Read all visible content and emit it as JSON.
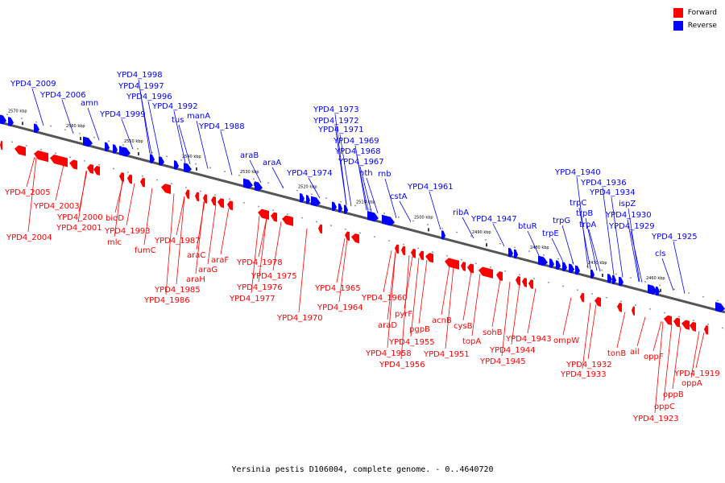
{
  "legend": [
    {
      "label": "Forward",
      "color": "#ff0000"
    },
    {
      "label": "Reverse",
      "color": "#0000ff"
    }
  ],
  "caption": "Yersinia pestis D106004, complete genome. - 0..4640720",
  "ticks": [
    "2570 kbp",
    "2560 kbp",
    "2550 kbp",
    "2540 kbp",
    "2530 kbp",
    "2520 kbp",
    "2510 kbp",
    "2500 kbp",
    "2490 kbp",
    "2480 kbp",
    "2470 kbp",
    "2460 kbp"
  ],
  "colors": {
    "forward": "#ff0000",
    "reverse": "#0000ff",
    "backbone": "#555555"
  },
  "reverse_labels": [
    "YPD4_2009",
    "YPD4_2006",
    "amn",
    "YPD4_1998",
    "YPD4_1997",
    "YPD4_1996",
    "YPD4_1999",
    "YPD4_1992",
    "tus",
    "manA",
    "YPD4_1988",
    "araB",
    "araA",
    "YPD4_1974",
    "YPD4_1973",
    "YPD4_1972",
    "YPD4_1971",
    "YPD4_1969",
    "YPD4_1968",
    "YPD4_1967",
    "nth",
    "rnb",
    "cstA",
    "YPD4_1961",
    "ribA",
    "YPD4_1947",
    "btuR",
    "YPD4_1940",
    "YPD4_1936",
    "YPD4_1934",
    "trpC",
    "trpG",
    "trpB",
    "trpA",
    "trpE",
    "ispZ",
    "YPD4_1930",
    "YPD4_1929",
    "YPD4_1925",
    "cls"
  ],
  "forward_labels": [
    "YPD4_2005",
    "YPD4_2003",
    "YPD4_2000",
    "YPD4_2001",
    "YPD4_2004",
    "bioD",
    "YPD4_1993",
    "mlc",
    "fumC",
    "YPD4_1987",
    "araC",
    "araF",
    "araG",
    "araH",
    "YPD4_1985",
    "YPD4_1986",
    "YPD4_1978",
    "YPD4_1975",
    "YPD4_1976",
    "YPD4_1977",
    "YPD4_1970",
    "YPD4_1965",
    "YPD4_1964",
    "YPD4_1960",
    "araD",
    "pyrF",
    "pgpB",
    "YPD4_1955",
    "YPD4_1958",
    "YPD4_1956",
    "acnB",
    "cysB",
    "YPD4_1951",
    "topA",
    "sohB",
    "YPD4_1943",
    "YPD4_1944",
    "YPD4_1945",
    "ompW",
    "YPD4_1932",
    "YPD4_1933",
    "tonB",
    "ail",
    "oppF",
    "YPD4_1919",
    "oppA",
    "oppB",
    "oppC",
    "YPD4_1923"
  ]
}
